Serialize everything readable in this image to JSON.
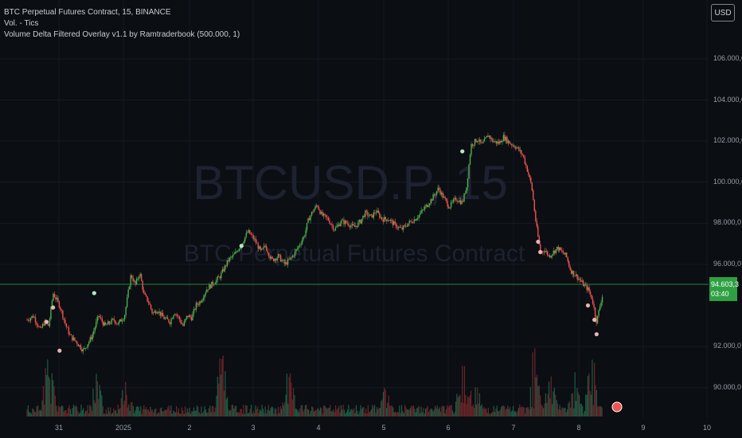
{
  "legend": {
    "line1": "BTC Perpetual Futures Contract, 15, BINANCE",
    "line2": "Vol. - Tics",
    "line3": "Volume Delta Filtered Overlay v1.1 by Ramtraderbook (500.000, 1)"
  },
  "watermark": {
    "symbol": "BTCUSD.P, 15",
    "description": "BTC Perpetual Futures Contract"
  },
  "currency_button": "USD",
  "last_price": {
    "value": "94.603,3",
    "countdown": "03:40"
  },
  "colors": {
    "up": "#26a69a",
    "down": "#ef5350",
    "up_bright": "#4caf50",
    "price_line": "#2ea043",
    "background": "#0b0e13"
  },
  "chart_data": {
    "type": "candlestick",
    "y_ticks": [
      "106.000,0",
      "104.000,0",
      "102.000,0",
      "100.000,0",
      "98.000,0",
      "96.000,0",
      "92.000,0",
      "90.000,0"
    ],
    "x_ticks": [
      "31",
      "2025",
      "2",
      "3",
      "4",
      "5",
      "6",
      "7",
      "8",
      "9",
      "10"
    ],
    "ylim": [
      88000,
      108000
    ],
    "grid": true,
    "price_path": [
      [
        0,
        93300
      ],
      [
        0.3,
        93500
      ],
      [
        0.6,
        92800
      ],
      [
        0.8,
        93200
      ],
      [
        1.0,
        93000
      ],
      [
        1.2,
        94600
      ],
      [
        1.5,
        94000
      ],
      [
        1.8,
        93000
      ],
      [
        2.0,
        92500
      ],
      [
        2.3,
        92200
      ],
      [
        2.6,
        91800
      ],
      [
        3.0,
        92500
      ],
      [
        3.3,
        93500
      ],
      [
        3.6,
        93000
      ],
      [
        4.0,
        93300
      ],
      [
        4.2,
        93100
      ],
      [
        4.5,
        93500
      ],
      [
        4.8,
        95500
      ],
      [
        5.0,
        95000
      ],
      [
        5.2,
        95600
      ],
      [
        5.4,
        94500
      ],
      [
        5.6,
        94200
      ],
      [
        5.8,
        93600
      ],
      [
        6.0,
        93800
      ],
      [
        6.3,
        93400
      ],
      [
        6.6,
        93200
      ],
      [
        6.8,
        93700
      ],
      [
        7.0,
        93400
      ],
      [
        7.2,
        93000
      ],
      [
        7.4,
        93500
      ],
      [
        7.6,
        93400
      ],
      [
        7.8,
        94000
      ],
      [
        8.0,
        94200
      ],
      [
        8.3,
        94800
      ],
      [
        8.6,
        95100
      ],
      [
        8.9,
        95400
      ],
      [
        9.1,
        95800
      ],
      [
        9.3,
        96200
      ],
      [
        9.6,
        96500
      ],
      [
        9.9,
        97000
      ],
      [
        10.2,
        97600
      ],
      [
        10.5,
        97200
      ],
      [
        10.8,
        96600
      ],
      [
        11.0,
        96900
      ],
      [
        11.3,
        96200
      ],
      [
        11.6,
        96400
      ],
      [
        11.9,
        96000
      ],
      [
        12.2,
        96300
      ],
      [
        12.5,
        96800
      ],
      [
        12.8,
        97400
      ],
      [
        13.0,
        98200
      ],
      [
        13.2,
        98600
      ],
      [
        13.4,
        98900
      ],
      [
        13.6,
        98400
      ],
      [
        13.9,
        98200
      ],
      [
        14.2,
        97700
      ],
      [
        14.5,
        98100
      ],
      [
        14.8,
        98000
      ],
      [
        15.1,
        97800
      ],
      [
        15.4,
        98100
      ],
      [
        15.6,
        98500
      ],
      [
        15.9,
        98300
      ],
      [
        16.1,
        98600
      ],
      [
        16.4,
        98200
      ],
      [
        16.7,
        98200
      ],
      [
        17.0,
        97900
      ],
      [
        17.3,
        97700
      ],
      [
        17.6,
        98000
      ],
      [
        17.9,
        98200
      ],
      [
        18.1,
        98400
      ],
      [
        18.4,
        98800
      ],
      [
        18.7,
        99200
      ],
      [
        19.0,
        99700
      ],
      [
        19.2,
        99300
      ],
      [
        19.5,
        98800
      ],
      [
        19.8,
        99200
      ],
      [
        20.1,
        99000
      ],
      [
        20.3,
        99800
      ],
      [
        20.5,
        101800
      ],
      [
        20.8,
        102100
      ],
      [
        21.0,
        101800
      ],
      [
        21.3,
        102300
      ],
      [
        21.5,
        102000
      ],
      [
        21.8,
        101900
      ],
      [
        22.0,
        102200
      ],
      [
        22.3,
        101900
      ],
      [
        22.6,
        101700
      ],
      [
        22.9,
        101300
      ],
      [
        23.1,
        100600
      ],
      [
        23.3,
        99800
      ],
      [
        23.5,
        98000
      ],
      [
        23.7,
        96600
      ],
      [
        23.9,
        96700
      ],
      [
        24.1,
        96400
      ],
      [
        24.3,
        96600
      ],
      [
        24.5,
        96800
      ],
      [
        24.7,
        96600
      ],
      [
        24.9,
        96400
      ],
      [
        25.1,
        95700
      ],
      [
        25.4,
        95400
      ],
      [
        25.7,
        95000
      ],
      [
        25.9,
        94800
      ],
      [
        26.1,
        94300
      ],
      [
        26.3,
        93200
      ],
      [
        26.5,
        94200
      ],
      [
        26.6,
        94600
      ]
    ],
    "volume_spikes": [
      [
        1.0,
        0.95
      ],
      [
        3.2,
        0.5
      ],
      [
        4.6,
        0.4
      ],
      [
        9.0,
        0.75
      ],
      [
        12.1,
        0.5
      ],
      [
        16.5,
        0.25
      ],
      [
        20.1,
        0.65
      ],
      [
        20.7,
        0.35
      ],
      [
        23.5,
        1.0
      ],
      [
        24.2,
        0.55
      ],
      [
        25.3,
        0.4
      ],
      [
        26.1,
        0.8
      ]
    ],
    "markers": [
      [
        0.9,
        93200
      ],
      [
        1.2,
        93900
      ],
      [
        1.5,
        91800
      ],
      [
        3.1,
        94600
      ],
      [
        9.9,
        96900
      ],
      [
        20.1,
        101500
      ],
      [
        23.6,
        97100
      ],
      [
        23.7,
        96600
      ],
      [
        25.9,
        94000
      ],
      [
        26.2,
        93300
      ],
      [
        26.3,
        92600
      ]
    ]
  }
}
